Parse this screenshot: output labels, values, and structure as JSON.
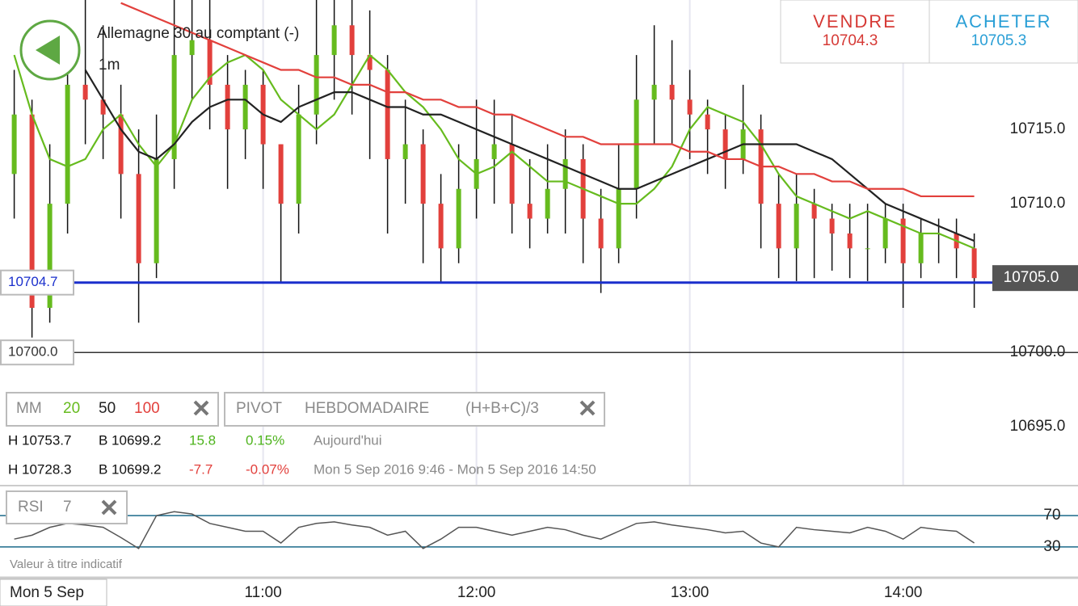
{
  "instrument": {
    "name": "Allemagne 30 au comptant (-)",
    "timeframe": "1m"
  },
  "quotes": {
    "sell_label": "VENDRE",
    "sell": "10704.3",
    "buy_label": "ACHETER",
    "buy": "10705.3"
  },
  "indicators": {
    "mm": {
      "label": "MM"
    },
    "pivot": {
      "label": "PIVOT",
      "period": "HEBDOMADAIRE",
      "formula": "(H+B+C)/3"
    },
    "rsi": {
      "label": "RSI",
      "period": "7"
    }
  },
  "stats": {
    "rows": [
      [
        "H 10753.7",
        "B 10699.2",
        "15.8",
        "0.15%",
        "Aujourd'hui"
      ],
      [
        "H 10728.3",
        "B 10699.2",
        "-7.7",
        "-0.07%",
        "Mon 5 Sep 2016 9:46 - Mon 5 Sep 2016 14:50"
      ]
    ]
  },
  "date_label": "Mon 5 Sep",
  "disclaimer": "Valeur à titre indicatif",
  "chart_data": [
    {
      "type": "candlestick",
      "x": [
        "9:50",
        "9:55",
        "10:00",
        "10:05",
        "10:10",
        "10:15",
        "10:20",
        "10:25",
        "10:30",
        "10:35",
        "10:40",
        "10:45",
        "10:50",
        "10:55",
        "11:00",
        "11:05",
        "11:10",
        "11:15",
        "11:20",
        "11:25",
        "11:30",
        "11:35",
        "11:40",
        "11:45",
        "11:50",
        "11:55",
        "12:00",
        "12:05",
        "12:10",
        "12:15",
        "12:20",
        "12:25",
        "12:30",
        "12:35",
        "12:40",
        "12:45",
        "12:50",
        "12:55",
        "13:00",
        "13:05",
        "13:10",
        "13:15",
        "13:20",
        "13:25",
        "13:30",
        "13:35",
        "13:40",
        "13:45",
        "13:50",
        "13:55",
        "14:00",
        "14:05",
        "14:10",
        "14:15",
        "14:20"
      ],
      "open": [
        10712,
        10716,
        10703,
        10710,
        10718,
        10717,
        10716,
        10712,
        10706,
        10713,
        10720,
        10721,
        10718,
        10715,
        10718,
        10714,
        10710,
        10716,
        10720,
        10722,
        10720,
        10719,
        10713,
        10714,
        10710,
        10707,
        10711,
        10713,
        10714,
        10710,
        10709,
        10711,
        10713,
        10709,
        10707,
        10711,
        10717,
        10718,
        10717,
        10716,
        10715,
        10713,
        10715,
        10710,
        10707,
        10710,
        10709,
        10708,
        10707,
        10707,
        10709,
        10706,
        10708,
        10708,
        10707
      ],
      "high": [
        10719,
        10717,
        10714,
        10720,
        10724,
        10722,
        10718,
        10715,
        10716,
        10724,
        10724,
        10724,
        10720,
        10719,
        10719,
        10714,
        10718,
        10724,
        10724,
        10724,
        10723,
        10720,
        10717,
        10715,
        10712,
        10714,
        10717,
        10717,
        10716,
        10713,
        10714,
        10715,
        10714,
        10711,
        10714,
        10720,
        10722,
        10721,
        10719,
        10717,
        10716,
        10718,
        10716,
        10712,
        10712,
        10711,
        10710,
        10710,
        10710,
        10710,
        10710,
        10709,
        10709,
        10709,
        10708
      ],
      "low": [
        10709,
        10701,
        10702,
        10708,
        10714,
        10713,
        10709,
        10702,
        10705,
        10711,
        10717,
        10715,
        10711,
        10713,
        10711,
        10704.7,
        10708,
        10714,
        10717,
        10716,
        10713,
        10708,
        10710,
        10706,
        10704.7,
        10706,
        10709,
        10710,
        10708,
        10707,
        10708,
        10708,
        10706,
        10704,
        10706,
        10709,
        10714,
        10714,
        10713,
        10712,
        10711,
        10712,
        10707,
        10705,
        10704.8,
        10705,
        10705.5,
        10705,
        10704.8,
        10706,
        10703,
        10705,
        10706,
        10705,
        10703
      ],
      "close": [
        10716,
        10703,
        10710,
        10718,
        10717,
        10716,
        10712,
        10706,
        10713,
        10720,
        10721,
        10718,
        10715,
        10718,
        10714,
        10710,
        10716,
        10720,
        10722,
        10720,
        10719,
        10713,
        10714,
        10710,
        10707,
        10711,
        10713,
        10714,
        10710,
        10709,
        10711,
        10713,
        10709,
        10707,
        10711,
        10717,
        10718,
        10717,
        10716,
        10715,
        10713,
        10715,
        10710,
        10707,
        10710,
        10709,
        10708,
        10707,
        10707,
        10709,
        10706,
        10708,
        10708,
        10707,
        10705
      ],
      "up_color": "#66bb1e",
      "down_color": "#e2403c",
      "series": [
        {
          "name": "20",
          "color": "#66bb1e",
          "values": [
            10720,
            10716,
            10713,
            10712.5,
            10713,
            10715,
            10716,
            10714,
            10712.5,
            10714,
            10717,
            10718.5,
            10719.5,
            10720,
            10719,
            10717,
            10716,
            10715,
            10716,
            10718,
            10720,
            10719,
            10717.5,
            10716.5,
            10715,
            10713,
            10712,
            10712.5,
            10713.5,
            10712.5,
            10711.5,
            10711.5,
            10711,
            10710.5,
            10710,
            10710,
            10711,
            10712.5,
            10715,
            10716.5,
            10716,
            10715.5,
            10714,
            10712,
            10710.5,
            10710,
            10709.5,
            10709,
            10709.5,
            10709,
            10708.5,
            10708,
            10708,
            10707.5,
            10707
          ]
        },
        {
          "name": "50",
          "color": "#222222",
          "values": [
            null,
            null,
            null,
            null,
            10719,
            10717,
            10715,
            10713.5,
            10713,
            10714,
            10715.5,
            10716.5,
            10717,
            10717,
            10716,
            10715.5,
            10716.5,
            10717,
            10717.5,
            10717.5,
            10717,
            10716.5,
            10716.5,
            10716,
            10716,
            10715.5,
            10715,
            10714.5,
            10714,
            10713.5,
            10713,
            10712.5,
            10712,
            10711.5,
            10711,
            10711,
            10711.5,
            10712,
            10712.5,
            10713,
            10713.5,
            10714,
            10714,
            10714,
            10714,
            10713.5,
            10713,
            10712,
            10711,
            10710,
            10709.5,
            10709,
            10708.5,
            10708,
            10707.5
          ]
        },
        {
          "name": "100",
          "color": "#e2403c",
          "values": [
            null,
            null,
            null,
            null,
            null,
            null,
            10723.5,
            10723,
            10722.5,
            10722,
            10721.5,
            10721,
            10720.5,
            10720,
            10719.5,
            10719,
            10719,
            10718.5,
            10718.5,
            10718,
            10718,
            10717.5,
            10717.5,
            10717,
            10717,
            10716.5,
            10716.5,
            10716,
            10716,
            10715.5,
            10715,
            10714.5,
            10714.5,
            10714,
            10714,
            10714,
            10714,
            10714,
            10713.5,
            10713.5,
            10713,
            10713,
            10712.5,
            10712.5,
            10712,
            10712,
            10711.5,
            10711.5,
            10711,
            10711,
            10711,
            10710.5,
            10710.5,
            10710.5,
            10710.5
          ]
        }
      ],
      "levels": [
        {
          "value": 10704.7,
          "label": "10704.7",
          "color": "#1a2fcc"
        },
        {
          "value": 10700,
          "label": "10700.0",
          "color": "#333333"
        }
      ],
      "last_price": {
        "value": 10705,
        "label": "10705.0"
      },
      "xlim": [
        "9:46",
        "14:21"
      ],
      "xticks": [
        "11:00",
        "12:00",
        "13:00",
        "14:00"
      ],
      "ylim": [
        10691.1,
        10723.7
      ],
      "yticks": [
        {
          "value": 10695,
          "label": "10695.0"
        },
        {
          "value": 10700,
          "label": "10700.0"
        },
        {
          "value": 10710,
          "label": "10710.0"
        },
        {
          "value": 10715,
          "label": "10715.0"
        }
      ],
      "grid": true
    },
    {
      "type": "line",
      "color": "#555555",
      "values": [
        40,
        45,
        55,
        60,
        58,
        55,
        42,
        28,
        70,
        75,
        72,
        60,
        55,
        50,
        50,
        35,
        55,
        60,
        62,
        58,
        55,
        45,
        50,
        28,
        40,
        55,
        55,
        50,
        45,
        50,
        55,
        52,
        45,
        40,
        50,
        60,
        62,
        58,
        55,
        52,
        48,
        50,
        35,
        30,
        55,
        52,
        50,
        48,
        55,
        50,
        40,
        55,
        52,
        50,
        35
      ],
      "ylim": [
        0,
        100
      ],
      "yticks": [
        30,
        70
      ],
      "tick_color": "#1b6a8a"
    }
  ]
}
